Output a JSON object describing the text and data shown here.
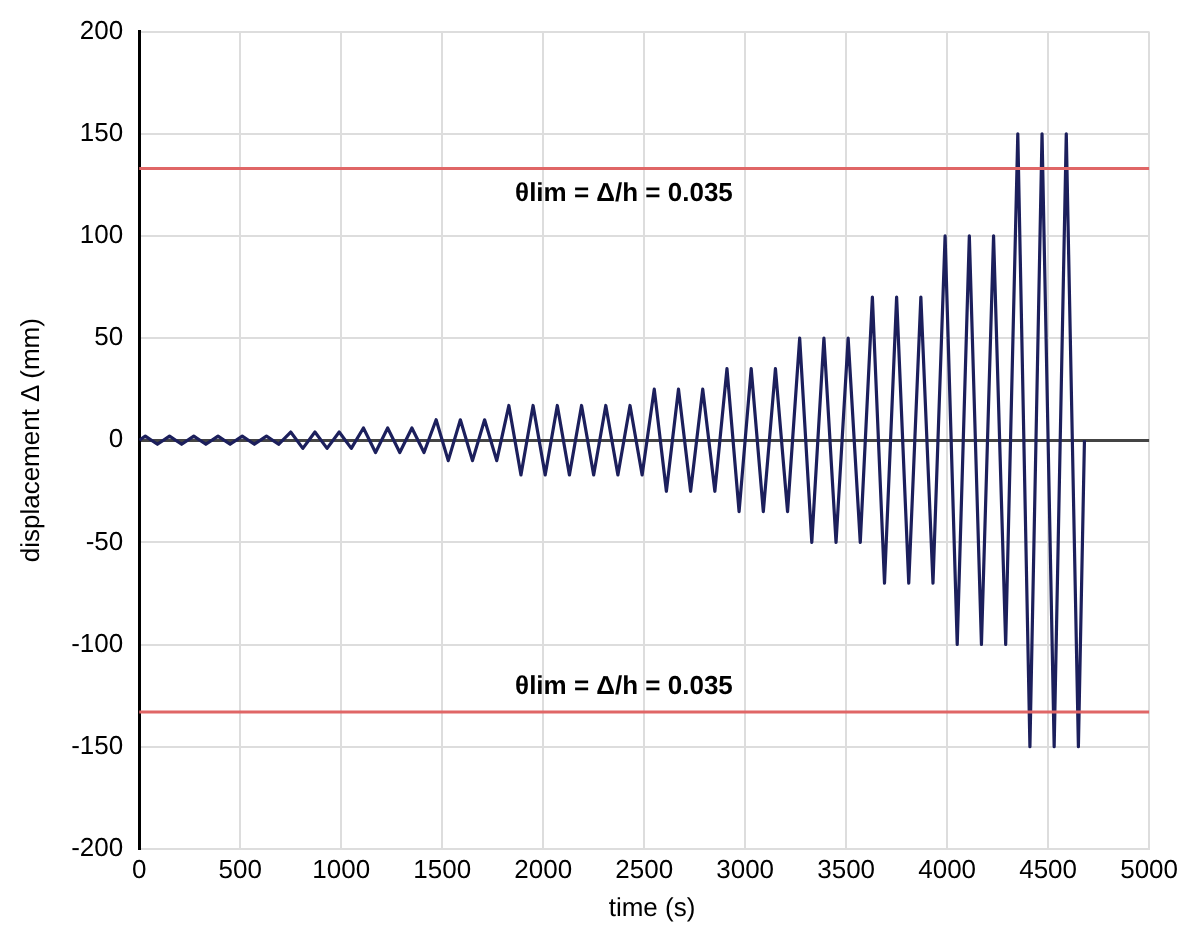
{
  "chart_data": {
    "type": "line",
    "xlabel": "time (s)",
    "ylabel": "displacement Δ (mm)",
    "x": [
      0,
      30,
      90,
      150,
      210,
      270,
      330,
      390,
      450,
      510,
      570,
      630,
      690,
      750,
      810,
      870,
      930,
      990,
      1050,
      1110,
      1170,
      1230,
      1290,
      1350,
      1410,
      1470,
      1530,
      1590,
      1650,
      1710,
      1770,
      1830,
      1890,
      1950,
      2010,
      2070,
      2130,
      2190,
      2250,
      2310,
      2370,
      2430,
      2490,
      2550,
      2610,
      2670,
      2730,
      2790,
      2850,
      2910,
      2970,
      3030,
      3090,
      3150,
      3210,
      3270,
      3330,
      3390,
      3450,
      3510,
      3570,
      3630,
      3690,
      3750,
      3810,
      3870,
      3930,
      3990,
      4050,
      4110,
      4170,
      4230,
      4290,
      4350,
      4410,
      4470,
      4530,
      4590,
      4650,
      4680
    ],
    "series": [
      {
        "color": "#1c1f5c",
        "values": [
          0,
          2,
          -2,
          2,
          -2,
          2,
          -2,
          2,
          -2,
          2,
          -2,
          2,
          -2,
          4,
          -4,
          4,
          -4,
          4,
          -4,
          6,
          -6,
          6,
          -6,
          6,
          -6,
          10,
          -10,
          10,
          -10,
          10,
          -10,
          17,
          -17,
          17,
          -17,
          17,
          -17,
          17,
          -17,
          17,
          -17,
          17,
          -17,
          25,
          -25,
          25,
          -25,
          25,
          -25,
          35,
          -35,
          35,
          -35,
          35,
          -35,
          50,
          -50,
          50,
          -50,
          50,
          -50,
          70,
          -70,
          70,
          -70,
          70,
          -70,
          100,
          -100,
          100,
          -100,
          100,
          -100,
          150,
          -150,
          150,
          -150,
          150,
          -150,
          0
        ]
      }
    ],
    "xlim": [
      0,
      5000
    ],
    "xticks": [
      0,
      500,
      1000,
      1500,
      2000,
      2500,
      3000,
      3500,
      4000,
      4500,
      5000
    ],
    "ylim": [
      -200,
      200
    ],
    "yticks": [
      -200,
      -150,
      -100,
      -50,
      0,
      50,
      100,
      150,
      200
    ],
    "grid": true,
    "marker": "none",
    "line_style": "solid",
    "annotations": [
      "θlim = Δ/h = 0.035",
      "θlim = Δ/h = 0.035"
    ],
    "ref_lines": [
      {
        "axis": "y",
        "value": 133,
        "color": "#e06666"
      },
      {
        "axis": "y",
        "value": -133,
        "color": "#e06666"
      }
    ]
  }
}
